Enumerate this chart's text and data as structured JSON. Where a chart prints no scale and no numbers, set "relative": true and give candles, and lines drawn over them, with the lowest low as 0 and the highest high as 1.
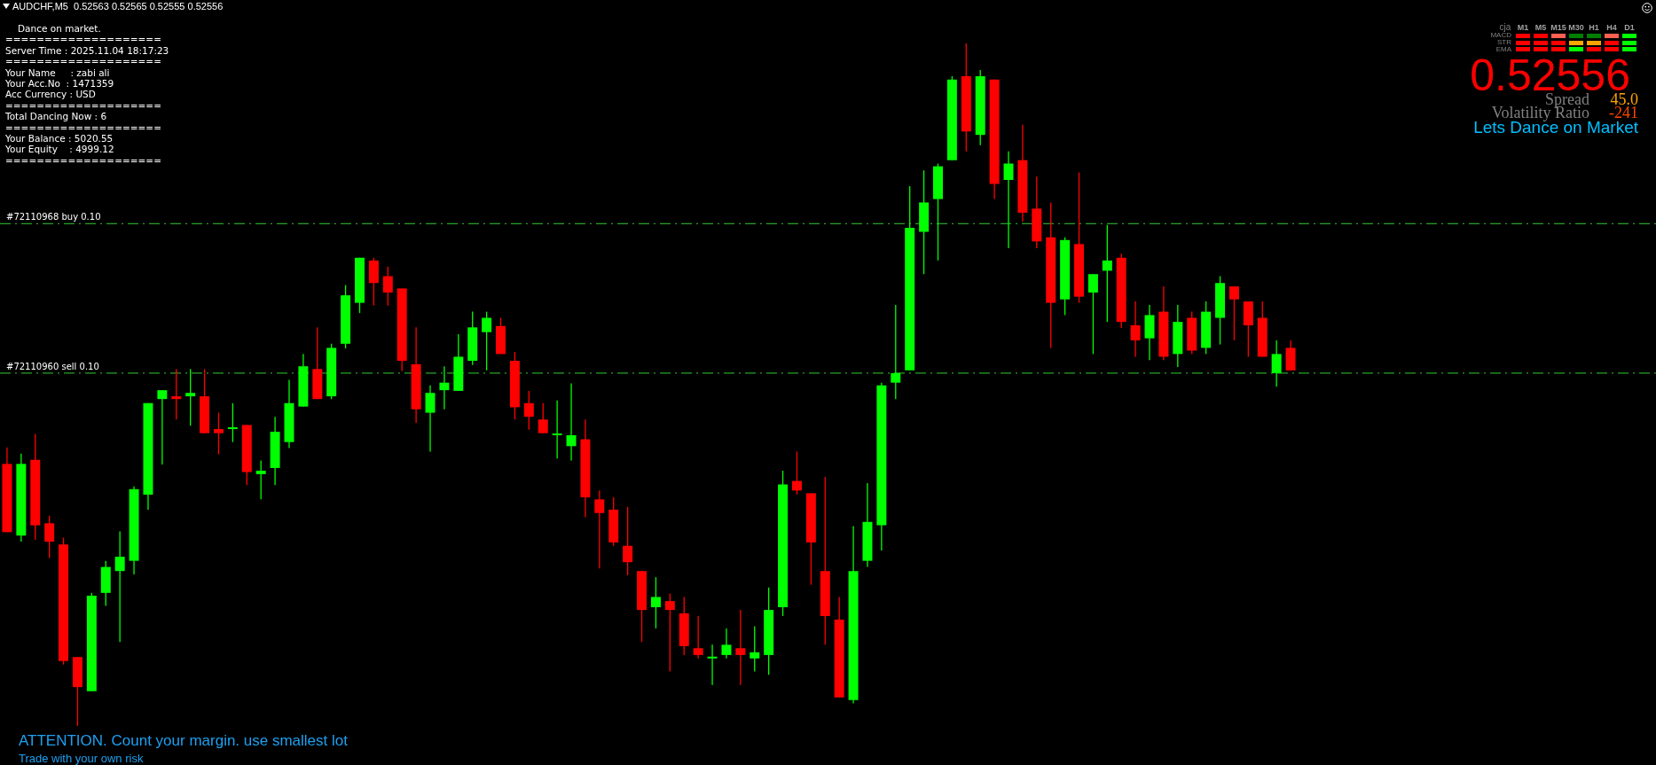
{
  "chart_data": {
    "type": "candlestick",
    "title": "AUDCHF,M5  0.52563 0.52565 0.52555 0.52556",
    "relative": true,
    "categories": [
      null,
      null,
      null,
      null,
      null,
      null,
      null,
      null,
      null,
      null,
      null,
      null,
      null,
      null,
      null,
      null,
      null,
      null,
      null,
      null,
      null,
      null,
      null,
      null,
      null,
      null,
      null,
      null,
      null,
      null,
      null,
      null,
      null,
      null,
      null,
      null,
      null,
      null,
      null,
      null,
      null,
      null,
      null,
      null,
      null,
      null,
      null,
      null,
      null,
      null,
      null,
      null,
      null,
      null,
      null,
      null,
      null,
      null,
      null,
      null,
      null,
      null,
      null,
      null,
      null,
      null,
      null,
      null,
      null,
      null,
      null,
      null,
      null,
      null,
      null,
      null,
      null,
      null,
      null,
      null,
      null,
      null,
      null,
      null,
      null,
      null,
      null,
      null,
      null,
      null,
      null,
      null
    ],
    "ohlc": [
      [
        0.384,
        0.408,
        0.284,
        0.284
      ],
      [
        0.279,
        0.399,
        0.27,
        0.384
      ],
      [
        0.39,
        0.428,
        0.273,
        0.294
      ],
      [
        0.297,
        0.308,
        0.246,
        0.27
      ],
      [
        0.266,
        0.276,
        0.09,
        0.095
      ],
      [
        0.101,
        0.101,
        0.0,
        0.057
      ],
      [
        0.051,
        0.195,
        0.051,
        0.191
      ],
      [
        0.195,
        0.242,
        0.176,
        0.233
      ],
      [
        0.227,
        0.285,
        0.123,
        0.248
      ],
      [
        0.242,
        0.351,
        0.222,
        0.347
      ],
      [
        0.339,
        0.473,
        0.317,
        0.473
      ],
      [
        0.479,
        0.492,
        0.383,
        0.492
      ],
      [
        0.483,
        0.523,
        0.449,
        0.479
      ],
      [
        0.483,
        0.523,
        0.44,
        0.488
      ],
      [
        0.483,
        0.523,
        0.429,
        0.429
      ],
      [
        0.435,
        0.459,
        0.398,
        0.429
      ],
      [
        0.435,
        0.473,
        0.416,
        0.435
      ],
      [
        0.441,
        0.441,
        0.353,
        0.372
      ],
      [
        0.369,
        0.389,
        0.332,
        0.374
      ],
      [
        0.378,
        0.453,
        0.353,
        0.431
      ],
      [
        0.416,
        0.507,
        0.407,
        0.473
      ],
      [
        0.468,
        0.545,
        0.468,
        0.527
      ],
      [
        0.523,
        0.584,
        0.479,
        0.479
      ],
      [
        0.483,
        0.56,
        0.479,
        0.554
      ],
      [
        0.56,
        0.646,
        0.553,
        0.631
      ],
      [
        0.62,
        0.686,
        0.605,
        0.686
      ],
      [
        0.682,
        0.686,
        0.616,
        0.649
      ],
      [
        0.659,
        0.673,
        0.616,
        0.635
      ],
      [
        0.641,
        0.641,
        0.52,
        0.535
      ],
      [
        0.53,
        0.584,
        0.444,
        0.464
      ],
      [
        0.459,
        0.499,
        0.402,
        0.488
      ],
      [
        0.492,
        0.527,
        0.464,
        0.503
      ],
      [
        0.491,
        0.574,
        0.491,
        0.541
      ],
      [
        0.535,
        0.607,
        0.529,
        0.584
      ],
      [
        0.577,
        0.607,
        0.521,
        0.598
      ],
      [
        0.586,
        0.598,
        0.545,
        0.545
      ],
      [
        0.535,
        0.548,
        0.449,
        0.467
      ],
      [
        0.473,
        0.491,
        0.434,
        0.453
      ],
      [
        0.449,
        0.473,
        0.429,
        0.429
      ],
      [
        0.426,
        0.477,
        0.392,
        0.426
      ],
      [
        0.41,
        0.502,
        0.389,
        0.426
      ],
      [
        0.42,
        0.449,
        0.306,
        0.335
      ],
      [
        0.332,
        0.345,
        0.231,
        0.312
      ],
      [
        0.317,
        0.335,
        0.264,
        0.269
      ],
      [
        0.264,
        0.321,
        0.221,
        0.24
      ],
      [
        0.227,
        0.227,
        0.123,
        0.17
      ],
      [
        0.174,
        0.218,
        0.143,
        0.189
      ],
      [
        0.183,
        0.194,
        0.08,
        0.17
      ],
      [
        0.165,
        0.189,
        0.104,
        0.117
      ],
      [
        0.114,
        0.161,
        0.099,
        0.104
      ],
      [
        0.099,
        0.119,
        0.06,
        0.099
      ],
      [
        0.104,
        0.143,
        0.099,
        0.119
      ],
      [
        0.114,
        0.17,
        0.06,
        0.104
      ],
      [
        0.099,
        0.146,
        0.08,
        0.108
      ],
      [
        0.104,
        0.203,
        0.075,
        0.17
      ],
      [
        0.174,
        0.374,
        0.161,
        0.354
      ],
      [
        0.359,
        0.402,
        0.339,
        0.345
      ],
      [
        0.341,
        0.341,
        0.207,
        0.269
      ],
      [
        0.227,
        0.365,
        0.119,
        0.161
      ],
      [
        0.156,
        0.189,
        0.042,
        0.042
      ],
      [
        0.038,
        0.293,
        0.033,
        0.227
      ],
      [
        0.242,
        0.356,
        0.233,
        0.299
      ],
      [
        0.294,
        0.503,
        0.257,
        0.499
      ],
      [
        0.503,
        0.617,
        0.479,
        0.517
      ],
      [
        0.521,
        0.791,
        0.521,
        0.73
      ],
      [
        0.724,
        0.814,
        0.662,
        0.767
      ],
      [
        0.772,
        0.824,
        0.682,
        0.82
      ],
      [
        0.829,
        0.952,
        0.829,
        0.947
      ],
      [
        0.952,
        1.0,
        0.842,
        0.871
      ],
      [
        0.866,
        0.961,
        0.851,
        0.952
      ],
      [
        0.947,
        0.947,
        0.772,
        0.794
      ],
      [
        0.8,
        0.842,
        0.7,
        0.824
      ],
      [
        0.829,
        0.881,
        0.739,
        0.752
      ],
      [
        0.758,
        0.805,
        0.7,
        0.71
      ],
      [
        0.716,
        0.767,
        0.554,
        0.62
      ],
      [
        0.625,
        0.716,
        0.602,
        0.712
      ],
      [
        0.706,
        0.811,
        0.62,
        0.629
      ],
      [
        0.635,
        0.662,
        0.545,
        0.662
      ],
      [
        0.667,
        0.734,
        0.592,
        0.682
      ],
      [
        0.686,
        0.692,
        0.583,
        0.592
      ],
      [
        0.587,
        0.622,
        0.541,
        0.565
      ],
      [
        0.568,
        0.617,
        0.536,
        0.602
      ],
      [
        0.607,
        0.644,
        0.536,
        0.541
      ],
      [
        0.545,
        0.617,
        0.526,
        0.592
      ],
      [
        0.598,
        0.607,
        0.545,
        0.55
      ],
      [
        0.554,
        0.622,
        0.545,
        0.607
      ],
      [
        0.598,
        0.659,
        0.559,
        0.649
      ],
      [
        0.644,
        0.644,
        0.565,
        0.625
      ],
      [
        0.622,
        0.622,
        0.541,
        0.587
      ],
      [
        0.598,
        0.622,
        0.541,
        0.541
      ],
      [
        0.517,
        0.565,
        0.497,
        0.545
      ],
      [
        0.554,
        0.565,
        0.521,
        0.521
      ]
    ],
    "colors": [
      "#ff0000",
      "#00ff00",
      "#ff0000",
      "#ff0000",
      "#ff0000",
      "#ff0000",
      "#00ff00",
      "#00ff00",
      "#00ff00",
      "#00ff00",
      "#00ff00",
      "#00ff00",
      "#ff0000",
      "#00ff00",
      "#ff0000",
      "#ff0000",
      "#00ff00",
      "#ff0000",
      "#00ff00",
      "#00ff00",
      "#00ff00",
      "#00ff00",
      "#ff0000",
      "#00ff00",
      "#00ff00",
      "#00ff00",
      "#ff0000",
      "#ff0000",
      "#ff0000",
      "#ff0000",
      "#00ff00",
      "#00ff00",
      "#00ff00",
      "#00ff00",
      "#00ff00",
      "#ff0000",
      "#ff0000",
      "#ff0000",
      "#ff0000",
      "#00ff00",
      "#00ff00",
      "#ff0000",
      "#ff0000",
      "#ff0000",
      "#ff0000",
      "#ff0000",
      "#00ff00",
      "#ff0000",
      "#ff0000",
      "#ff0000",
      "#00ff00",
      "#00ff00",
      "#ff0000",
      "#00ff00",
      "#00ff00",
      "#00ff00",
      "#ff0000",
      "#ff0000",
      "#ff0000",
      "#ff0000",
      "#00ff00",
      "#00ff00",
      "#00ff00",
      "#00ff00",
      "#00ff00",
      "#00ff00",
      "#00ff00",
      "#00ff00",
      "#ff0000",
      "#00ff00",
      "#ff0000",
      "#00ff00",
      "#ff0000",
      "#ff0000",
      "#ff0000",
      "#00ff00",
      "#ff0000",
      "#00ff00",
      "#00ff00",
      "#ff0000",
      "#ff0000",
      "#00ff00",
      "#ff0000",
      "#00ff00",
      "#ff0000",
      "#00ff00",
      "#00ff00",
      "#ff0000",
      "#ff0000",
      "#ff0000",
      "#00ff00",
      "#ff0000"
    ],
    "ref_lines": [
      {
        "axis": "y",
        "value": 0.736,
        "label": "#72110968 buy 0.10",
        "color": "#32cd32",
        "line_style": "dashed"
      },
      {
        "axis": "y",
        "value": 0.517,
        "label": "#72110960 sell 0.10",
        "color": "#32cd32",
        "line_style": "dashed"
      }
    ],
    "legend": false,
    "annotations": [
      "Dance on market.",
      "====================",
      "Server Time : 2025.11.04 18:17:23",
      "====================",
      "Your Name     : zabi ali",
      "Your Acc.No  : 1471359",
      "Acc Currency : USD",
      "====================",
      "Total Dancing Now : 6",
      "====================",
      "Your Balance : 5020.55",
      "Your Equity    : 4999.12",
      "====================",
      "0.52556",
      "Spread",
      "45.0",
      "Volatility Ratio",
      "-241",
      "Lets Dance on Market",
      "cja",
      "M1",
      "M5",
      "M15",
      "M30",
      "H1",
      "H4",
      "D1",
      "MACD",
      "STR",
      "EMA",
      "ATTENTION. Count your margin. use smallest lot",
      "Trade with your own risk"
    ]
  }
}
